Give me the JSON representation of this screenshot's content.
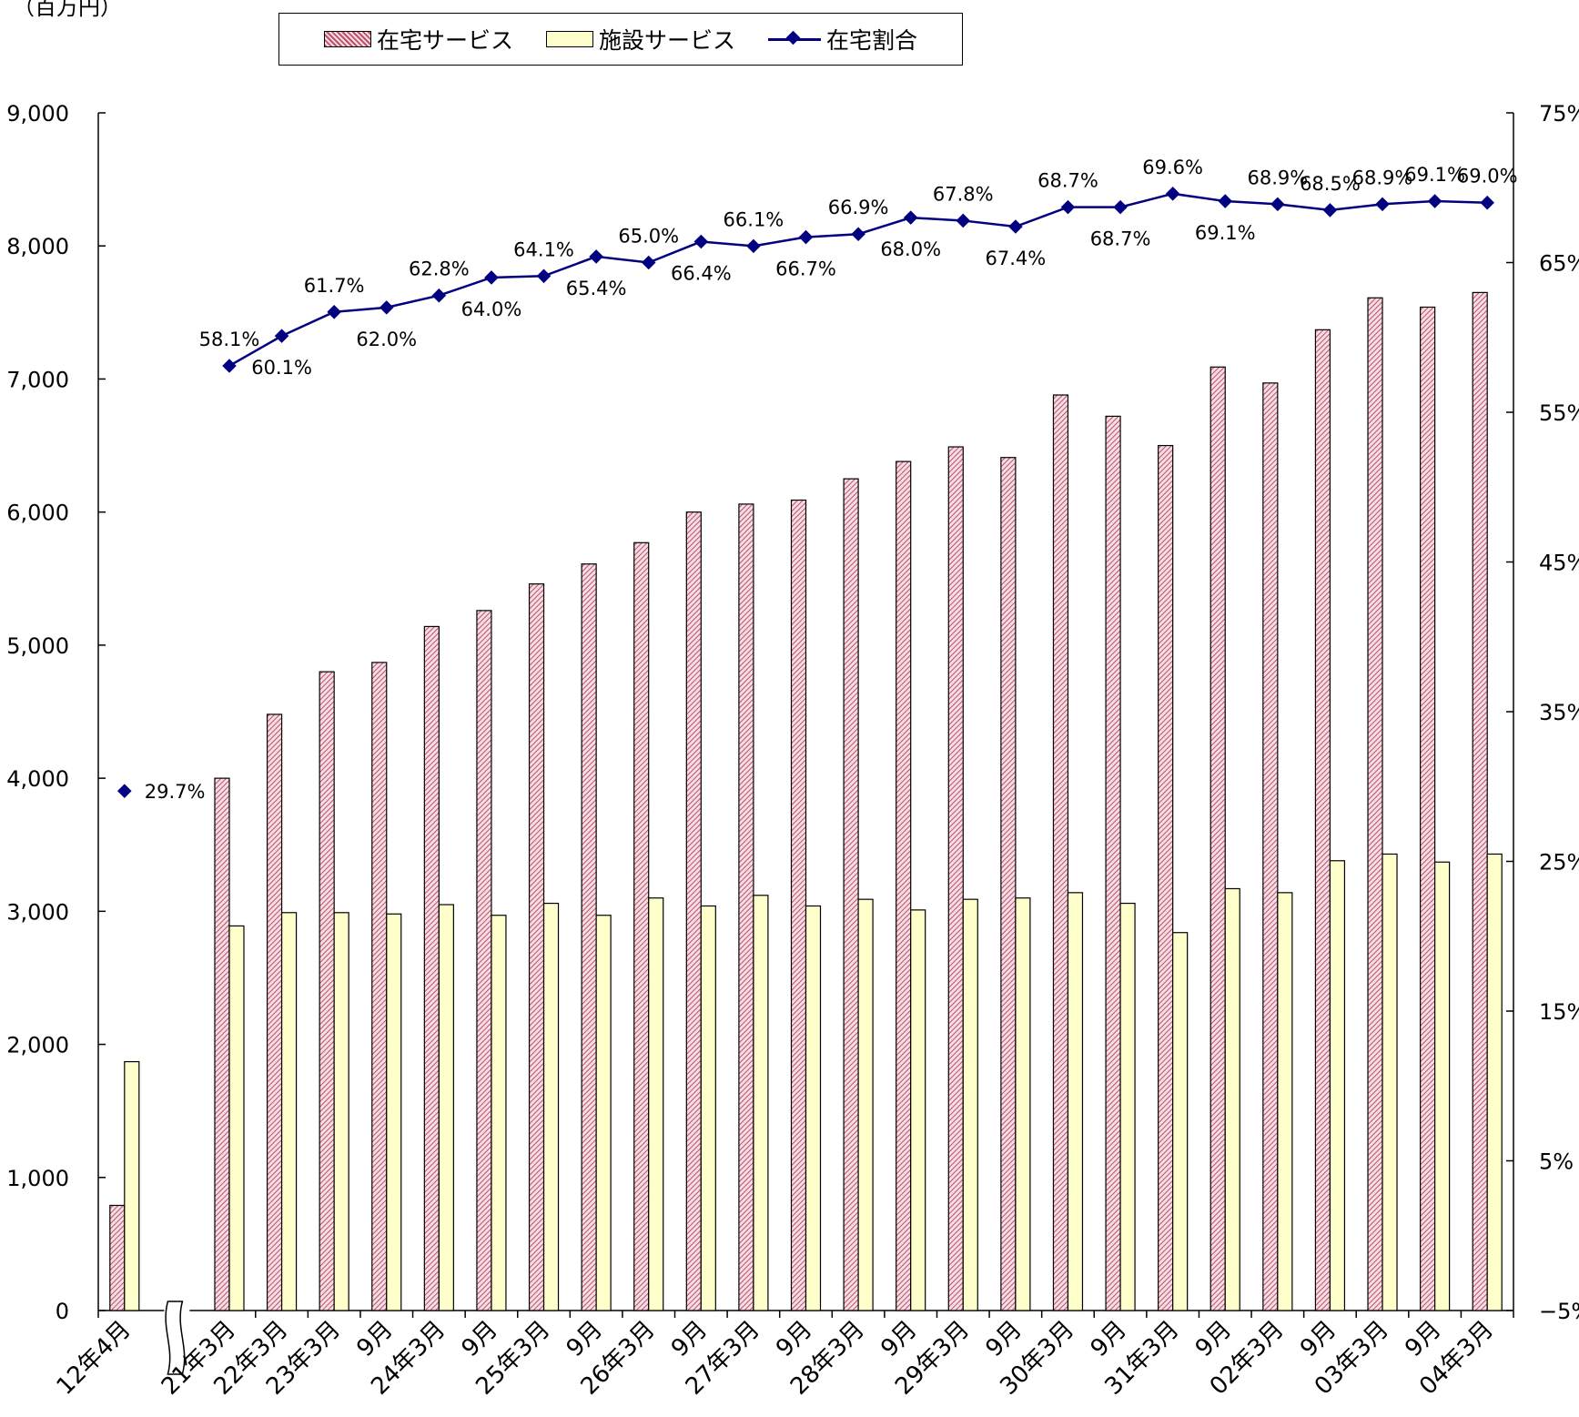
{
  "unit_label": "（百万円）",
  "legend": {
    "zaitaku": "在宅サービス",
    "shisetsu": "施設サービス",
    "ratio": "在宅割合"
  },
  "colors": {
    "zaitaku_stripe": "#c0506a",
    "zaitaku_bg": "#f4dde3",
    "shisetsu_fill": "#ffffcc",
    "ratio_line": "#000080"
  },
  "chart_data": {
    "type": "bar",
    "categories": [
      "12年4月",
      "",
      "21年3月",
      "22年3月",
      "23年3月",
      "9月",
      "24年3月",
      "9月",
      "25年3月",
      "9月",
      "26年3月",
      "9月",
      "27年3月",
      "9月",
      "28年3月",
      "9月",
      "29年3月",
      "9月",
      "30年3月",
      "9月",
      "31年3月",
      "9月",
      "02年3月",
      "9月",
      "03年3月",
      "9月",
      "04年3月"
    ],
    "series": [
      {
        "name": "在宅サービス",
        "type": "bar",
        "values": [
          790,
          null,
          4000,
          4480,
          4800,
          4870,
          5140,
          5260,
          5460,
          5610,
          5770,
          6000,
          6060,
          6090,
          6250,
          6380,
          6490,
          6410,
          6880,
          6720,
          6500,
          7090,
          6970,
          7370,
          7610,
          7540,
          7650
        ]
      },
      {
        "name": "施設サービス",
        "type": "bar",
        "values": [
          1870,
          null,
          2890,
          2990,
          2990,
          2980,
          3050,
          2970,
          3060,
          2970,
          3100,
          3040,
          3120,
          3040,
          3090,
          3010,
          3090,
          3100,
          3140,
          3060,
          2840,
          3170,
          3140,
          3380,
          3430,
          3370,
          3430
        ]
      },
      {
        "name": "在宅割合",
        "type": "line",
        "axis": "right",
        "values": [
          29.7,
          null,
          58.1,
          60.1,
          61.7,
          62.0,
          62.8,
          64.0,
          64.1,
          65.4,
          65.0,
          66.4,
          66.1,
          66.7,
          66.9,
          68.0,
          67.8,
          67.4,
          68.7,
          68.7,
          69.6,
          69.1,
          68.9,
          68.5,
          68.9,
          69.1,
          69.0
        ],
        "labels": [
          "29.7%",
          "",
          "58.1%",
          "60.1%",
          "61.7%",
          "62.0%",
          "62.8%",
          "64.0%",
          "64.1%",
          "65.4%",
          "65.0%",
          "66.4%",
          "66.1%",
          "66.7%",
          "66.9%",
          "68.0%",
          "67.8%",
          "67.4%",
          "68.7%",
          "68.7%",
          "69.6%",
          "69.1%",
          "68.9%",
          "68.5%",
          "68.9%",
          "69.1%",
          "69.0%"
        ],
        "label_pos": [
          "right",
          "",
          "above",
          "below",
          "above",
          "below",
          "above",
          "below",
          "above",
          "below",
          "above",
          "below",
          "above",
          "below",
          "above",
          "below",
          "above",
          "below",
          "above",
          "below",
          "above",
          "below",
          "above",
          "above",
          "above",
          "above",
          "above"
        ]
      }
    ],
    "y_left": {
      "ylim": [
        0,
        9000
      ],
      "ticks": [
        0,
        1000,
        2000,
        3000,
        4000,
        5000,
        6000,
        7000,
        8000,
        9000
      ],
      "tick_labels": [
        "0",
        "1,000",
        "2,000",
        "3,000",
        "4,000",
        "5,000",
        "6,000",
        "7,000",
        "8,000",
        "9,000"
      ]
    },
    "y_right": {
      "ylim": [
        -5,
        75
      ],
      "ticks": [
        -5,
        5,
        15,
        25,
        35,
        45,
        55,
        65,
        75
      ],
      "tick_labels": [
        "−5%",
        "5%",
        "15%",
        "25%",
        "35%",
        "45%",
        "55%",
        "65%",
        "75%"
      ]
    },
    "axis_break_after_index": 0,
    "legend_position": "top",
    "grid": false
  }
}
